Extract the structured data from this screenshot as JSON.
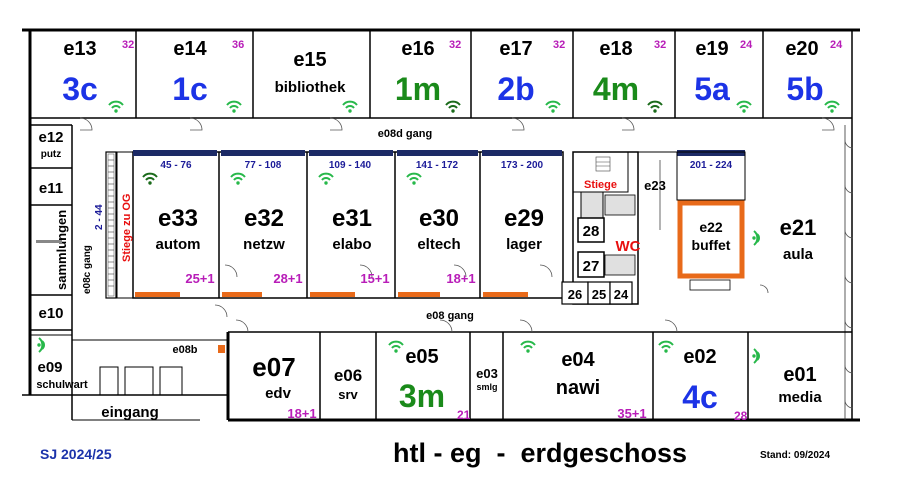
{
  "rooms_top": [
    {
      "id": "e13",
      "class": "3c",
      "seats": "32",
      "color": "blue"
    },
    {
      "id": "e14",
      "class": "1c",
      "seats": "36",
      "color": "blue"
    },
    {
      "id": "e15",
      "class": "bibliothek",
      "seats": "",
      "color": "black"
    },
    {
      "id": "e16",
      "class": "1m",
      "seats": "32",
      "color": "green"
    },
    {
      "id": "e17",
      "class": "2b",
      "seats": "32",
      "color": "blue"
    },
    {
      "id": "e18",
      "class": "4m",
      "seats": "32",
      "color": "green"
    },
    {
      "id": "e19",
      "class": "5a",
      "seats": "24",
      "color": "blue"
    },
    {
      "id": "e20",
      "class": "5b",
      "seats": "24",
      "color": "blue"
    }
  ],
  "rooms_left": [
    {
      "id": "e12",
      "label": "putz"
    },
    {
      "id": "e11",
      "label": ""
    },
    {
      "id": "",
      "label": "sammlungen"
    },
    {
      "id": "e10",
      "label": ""
    },
    {
      "id": "e09",
      "label": "schulwart"
    }
  ],
  "labs": [
    {
      "id": "e33",
      "label": "autom",
      "range": "45 - 76",
      "seats": "25+1"
    },
    {
      "id": "e32",
      "label": "netzw",
      "range": "77 - 108",
      "seats": "28+1"
    },
    {
      "id": "e31",
      "label": "elabo",
      "range": "109 - 140",
      "seats": "15+1"
    },
    {
      "id": "e30",
      "label": "eltech",
      "range": "141 - 172",
      "seats": "18+1"
    },
    {
      "id": "e29",
      "label": "lager",
      "range": "173 - 200",
      "seats": ""
    }
  ],
  "rooms_bottom": [
    {
      "id": "e07",
      "label": "edv",
      "seats": "18+1"
    },
    {
      "id": "e06",
      "label": "srv",
      "seats": ""
    },
    {
      "id": "e05",
      "label": "3m",
      "seats": "21"
    },
    {
      "id": "e03",
      "label": "smlg",
      "seats": ""
    },
    {
      "id": "e04",
      "label": "nawi",
      "seats": "35+1"
    },
    {
      "id": "e02",
      "label": "4c",
      "seats": "28"
    },
    {
      "id": "e01",
      "label": "media",
      "seats": ""
    }
  ],
  "misc": {
    "gang_top": "e08d gang",
    "gang_mid": "e08 gang",
    "gang_left": "e08c gang",
    "gang_left_range": "2 - 44",
    "e08b": "e08b",
    "eingang": "eingang",
    "stiege_og": "Stiege zu OG",
    "stiege": "Stiege",
    "e23": "e23",
    "wc": "WC",
    "wc_rooms": [
      "28",
      "27",
      "26",
      "25",
      "24"
    ],
    "e22": "e22",
    "e22_label": "buffet",
    "e22_range": "201 - 224",
    "e21": "e21",
    "e21_label": "aula"
  },
  "footer": {
    "year": "SJ 2024/25",
    "title": "htl - eg  -  erdgeschoss",
    "stand": "Stand: 09/2024"
  },
  "colors": {
    "blue": "#1c33e6",
    "green": "#1a8a1a",
    "magenta": "#b81db8",
    "red": "#e81010",
    "orange": "#e86a1a",
    "wifi": "#27b84a"
  },
  "icons": [
    "wifi-icon",
    "door-icon",
    "stairs-icon"
  ]
}
